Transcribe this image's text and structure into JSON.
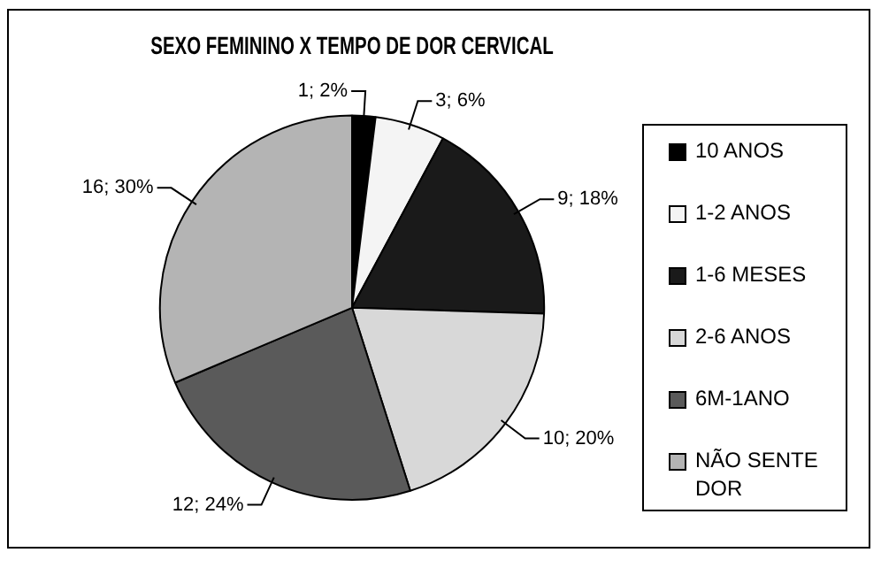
{
  "chart_data": {
    "type": "pie",
    "title": "SEXO FEMININO X TEMPO DE DOR CERVICAL",
    "categories": [
      "10 ANOS",
      "1-2 ANOS",
      "1-6 MESES",
      "2-6 ANOS",
      "6M-1ANO",
      "NÃO SENTE DOR"
    ],
    "values": [
      1,
      3,
      9,
      10,
      12,
      16
    ],
    "value_labels": [
      "1; 2%",
      "3; 6%",
      "9; 18%",
      "10; 20%",
      "12; 24%",
      "16; 30%"
    ],
    "colors": [
      "#000000",
      "#f4f4f4",
      "#1a1a1a",
      "#d8d8d8",
      "#5a5a5a",
      "#b4b4b4"
    ],
    "legend": "right"
  }
}
